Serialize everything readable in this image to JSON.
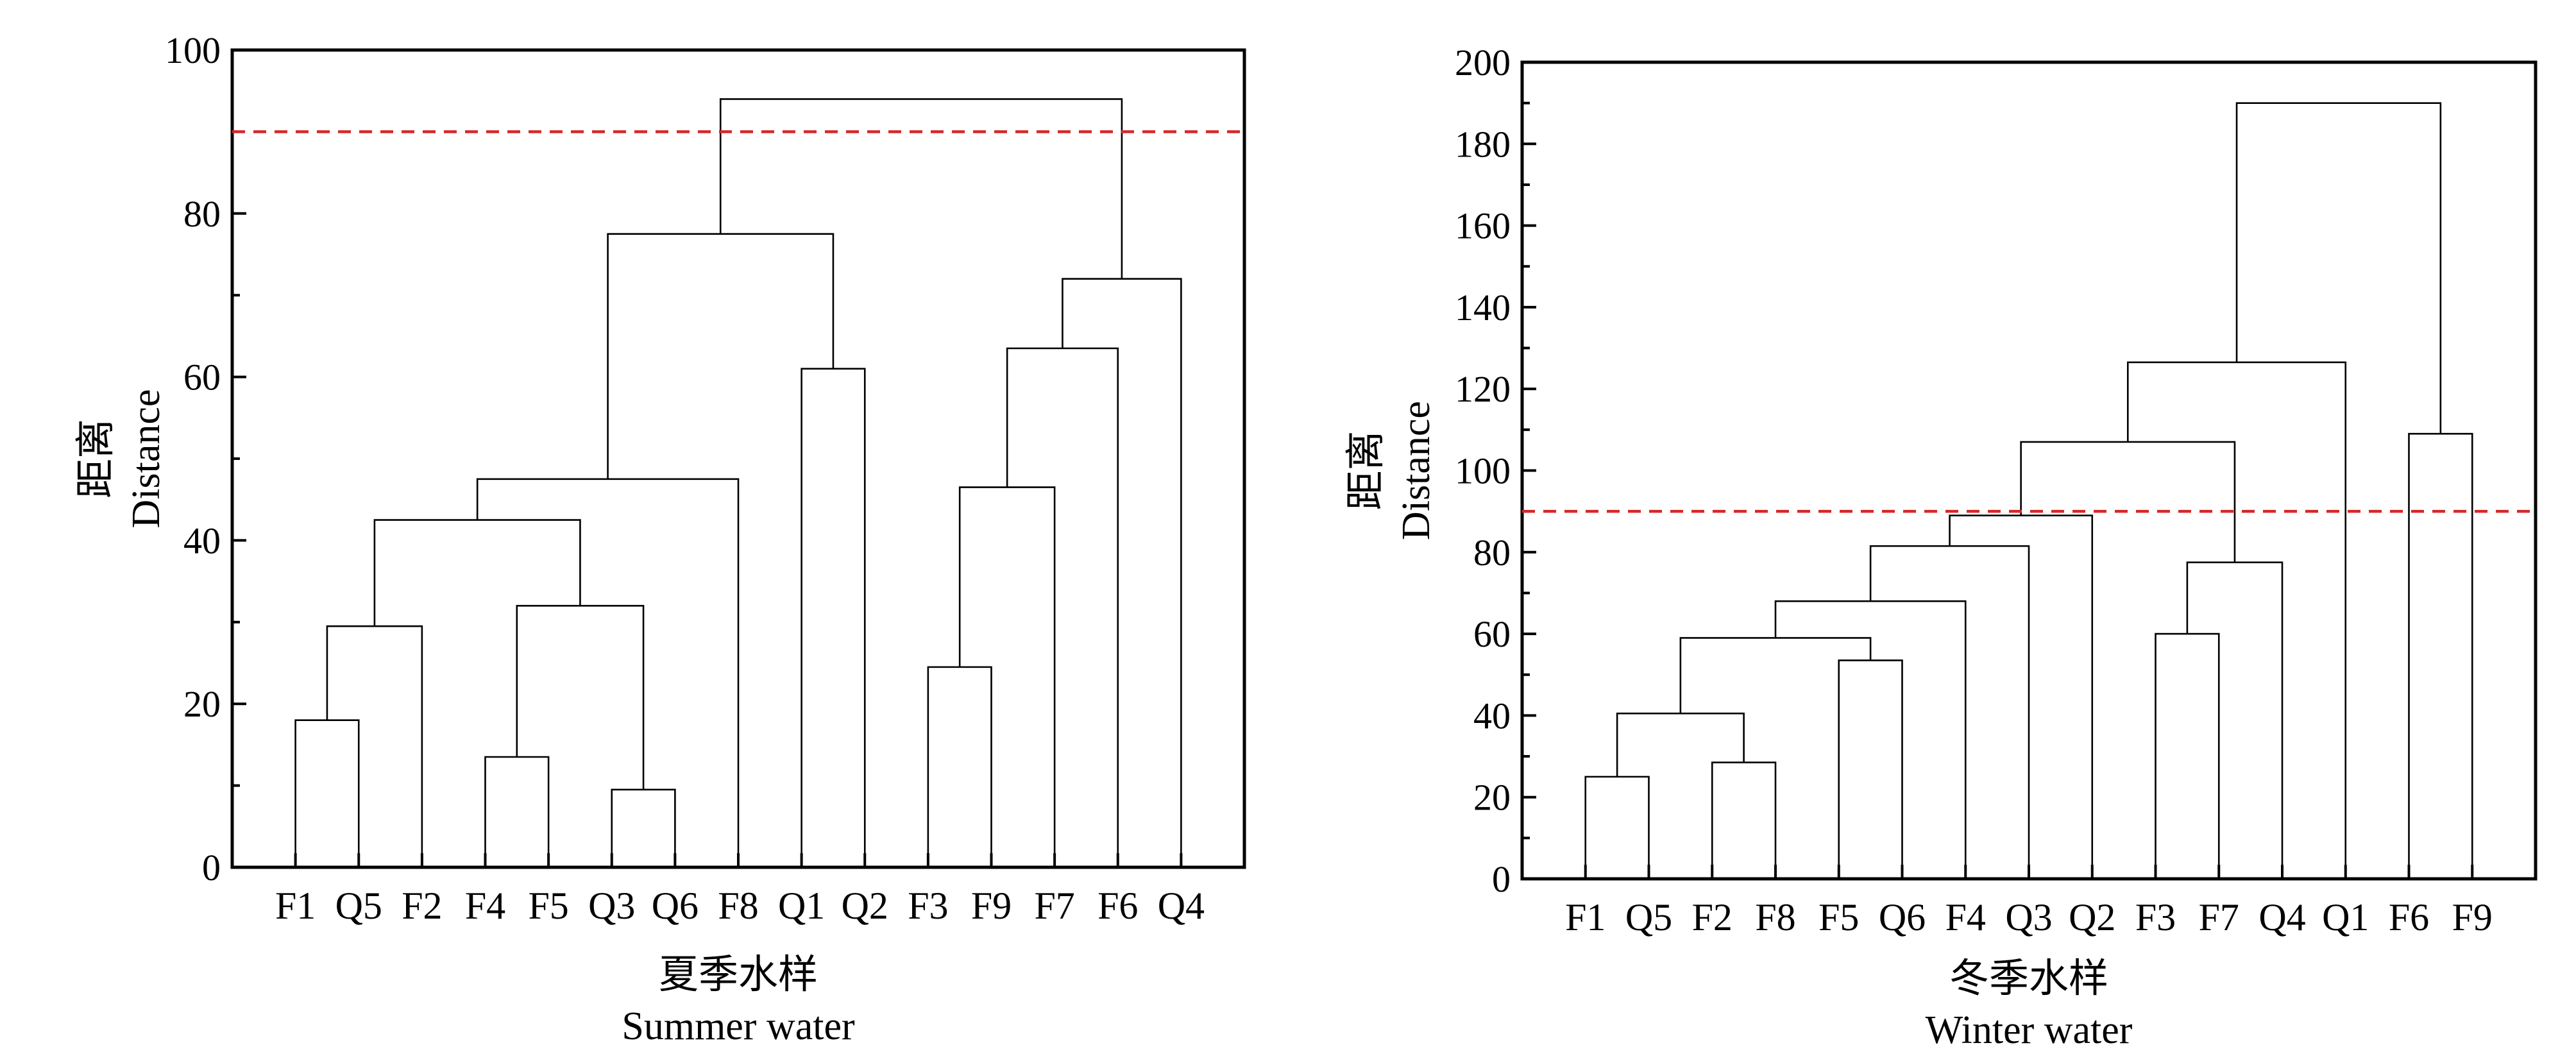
{
  "chart_data": [
    {
      "type": "dendrogram",
      "ylabel": [
        "距离",
        "Distance"
      ],
      "xlabel": [
        "夏季水样",
        "Summer water"
      ],
      "ylim": [
        0,
        100
      ],
      "yticks": [
        0,
        20,
        40,
        60,
        80,
        100
      ],
      "threshold": 90,
      "threshold_color": "#d62728",
      "leaves": [
        "F1",
        "Q5",
        "F2",
        "F4",
        "F5",
        "Q3",
        "Q6",
        "F8",
        "Q1",
        "Q2",
        "F3",
        "F9",
        "F7",
        "F6",
        "Q4"
      ],
      "merges": [
        {
          "a": "F1",
          "b": "Q5",
          "height": 18
        },
        {
          "a": "F4",
          "b": "F5",
          "height": 13.5
        },
        {
          "a": "Q3",
          "b": "Q6",
          "height": 9.5
        },
        {
          "a": "F3",
          "b": "F9",
          "height": 24.5
        },
        {
          "a": "m1",
          "b": "F2",
          "height": 29.5
        },
        {
          "a": "m2",
          "b": "m3",
          "height": 32
        },
        {
          "a": "m5",
          "b": "m6",
          "height": 42.5
        },
        {
          "a": "m7",
          "b": "F8",
          "height": 47.5
        },
        {
          "a": "Q1",
          "b": "Q2",
          "height": 61
        },
        {
          "a": "m4",
          "b": "F7",
          "height": 46.5
        },
        {
          "a": "m10",
          "b": "F6",
          "height": 63.5
        },
        {
          "a": "m11",
          "b": "Q4",
          "height": 72
        },
        {
          "a": "m8",
          "b": "m9",
          "height": 77.5
        },
        {
          "a": "m13",
          "b": "m12",
          "height": 94
        }
      ]
    },
    {
      "type": "dendrogram",
      "ylabel": [
        "距离",
        "Distance"
      ],
      "xlabel": [
        "冬季水样",
        "Winter water"
      ],
      "ylim": [
        0,
        200
      ],
      "yticks": [
        0,
        20,
        40,
        60,
        80,
        100,
        120,
        140,
        160,
        180,
        200
      ],
      "threshold": 90,
      "threshold_color": "#d62728",
      "leaves": [
        "F1",
        "Q5",
        "F2",
        "F8",
        "F5",
        "Q6",
        "F4",
        "Q3",
        "Q2",
        "F3",
        "F7",
        "Q4",
        "Q1",
        "F6",
        "F9"
      ],
      "merges": [
        {
          "a": "F1",
          "b": "Q5",
          "height": 25
        },
        {
          "a": "F2",
          "b": "F8",
          "height": 28.5
        },
        {
          "a": "m1",
          "b": "m2",
          "height": 40.5
        },
        {
          "a": "F5",
          "b": "Q6",
          "height": 53.5
        },
        {
          "a": "m3",
          "b": "m4",
          "height": 59
        },
        {
          "a": "m5",
          "b": "F4",
          "height": 68
        },
        {
          "a": "m6",
          "b": "Q3",
          "height": 81.5
        },
        {
          "a": "m7",
          "b": "Q2",
          "height": 89
        },
        {
          "a": "F3",
          "b": "F7",
          "height": 60
        },
        {
          "a": "m9",
          "b": "Q4",
          "height": 77.5
        },
        {
          "a": "m8",
          "b": "m10",
          "height": 107
        },
        {
          "a": "m11",
          "b": "Q1",
          "height": 126.5
        },
        {
          "a": "F6",
          "b": "F9",
          "height": 109
        },
        {
          "a": "m12",
          "b": "m13",
          "height": 190
        }
      ]
    }
  ]
}
